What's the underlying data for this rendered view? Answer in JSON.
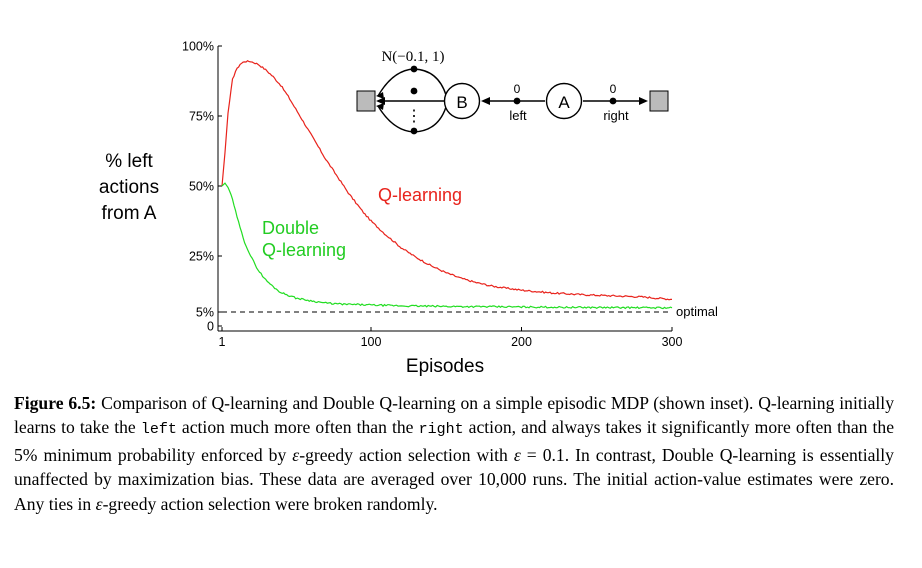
{
  "chart_data": {
    "type": "line",
    "ylabel": [
      "% left",
      "actions",
      "from A"
    ],
    "xlabel": "Episodes",
    "xlim": [
      1,
      300
    ],
    "ylim": [
      0,
      1
    ],
    "x_ticks": [
      {
        "value": 1,
        "label": "1"
      },
      {
        "value": 100,
        "label": "100"
      },
      {
        "value": 200,
        "label": "200"
      },
      {
        "value": 300,
        "label": "300"
      }
    ],
    "y_ticks": [
      {
        "value": 0,
        "label": "0"
      },
      {
        "value": 0.05,
        "label": "5%"
      },
      {
        "value": 0.25,
        "label": "25%"
      },
      {
        "value": 0.5,
        "label": "50%"
      },
      {
        "value": 0.75,
        "label": "75%"
      },
      {
        "value": 1.0,
        "label": "100%"
      }
    ],
    "series": [
      {
        "name": "Q-learning",
        "color": "#e8231c",
        "x": [
          1,
          3,
          5,
          8,
          10,
          13,
          16,
          20,
          25,
          30,
          35,
          40,
          45,
          50,
          55,
          60,
          65,
          70,
          75,
          80,
          85,
          90,
          95,
          100,
          110,
          120,
          130,
          140,
          150,
          160,
          170,
          180,
          190,
          200,
          220,
          240,
          260,
          280,
          300
        ],
        "values": [
          0.5,
          0.62,
          0.76,
          0.88,
          0.91,
          0.935,
          0.945,
          0.945,
          0.935,
          0.915,
          0.89,
          0.86,
          0.82,
          0.775,
          0.73,
          0.685,
          0.64,
          0.595,
          0.555,
          0.515,
          0.475,
          0.44,
          0.405,
          0.375,
          0.325,
          0.28,
          0.245,
          0.215,
          0.19,
          0.17,
          0.155,
          0.143,
          0.135,
          0.128,
          0.118,
          0.112,
          0.108,
          0.104,
          0.095
        ]
      },
      {
        "name": "Double Q-learning",
        "color": "#22dd22",
        "x": [
          1,
          3,
          5,
          7,
          10,
          13,
          16,
          20,
          25,
          30,
          35,
          40,
          50,
          60,
          70,
          80,
          100,
          120,
          150,
          200,
          250,
          300
        ],
        "values": [
          0.5,
          0.51,
          0.495,
          0.47,
          0.41,
          0.35,
          0.3,
          0.25,
          0.2,
          0.165,
          0.14,
          0.12,
          0.1,
          0.09,
          0.082,
          0.078,
          0.075,
          0.072,
          0.07,
          0.068,
          0.066,
          0.065
        ]
      }
    ],
    "series_labels": {
      "q_learning": "Q-learning",
      "double_line1": "Double",
      "double_line2": "Q-learning"
    },
    "optimal": {
      "value": 0.05,
      "label": "optimal"
    },
    "inset": {
      "distribution_label": "N(−0.1, 1)",
      "node_b": "B",
      "node_a": "A",
      "left_reward": "0",
      "left_label": "left",
      "right_reward": "0",
      "right_label": "right",
      "ellipsis": "⋮"
    }
  },
  "caption": {
    "figure_label": "Figure 6.5:",
    "part1": " Comparison of Q-learning and Double Q-learning on a simple episodic MDP (shown inset). Q-learning initially learns to take the ",
    "left_word": "left",
    "part2": " action much more often than the ",
    "right_word": "right",
    "part3": " action, and always takes it significantly more often than the 5% minimum probability enforced by ",
    "eps1": "ε",
    "part4": "-greedy action selection with ",
    "eps2": "ε",
    "part5": " = 0.1. In contrast, Double Q-learning is essentially unaffected by maximization bias. These data are averaged over 10,000 runs. The initial action-value estimates were zero. Any ties in ",
    "eps3": "ε",
    "part6": "-greedy action selection were broken randomly."
  }
}
